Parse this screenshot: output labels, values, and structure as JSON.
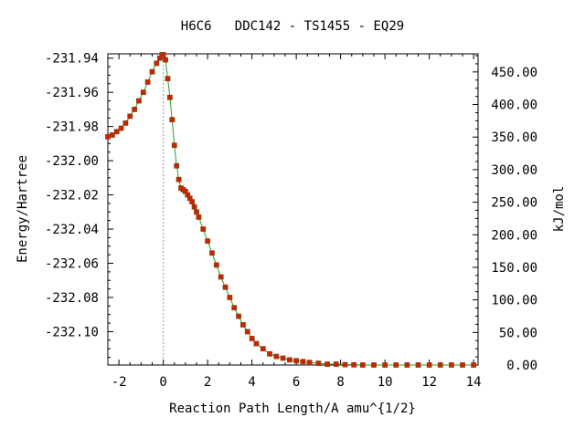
{
  "chart_data": {
    "type": "line",
    "title": "H6C6   DDC142 - TS1455 - EQ29",
    "xlabel": "Reaction Path Length/A amu^{1/2}",
    "ylabel": "Energy/Hartree",
    "y2label": "kJ/mol",
    "xlim": [
      -2.5,
      14.2
    ],
    "ylim": [
      -232.1195,
      -231.9375
    ],
    "y2lim": [
      0,
      477.8
    ],
    "x_ticks": [
      "-2",
      "0",
      "2",
      "4",
      "6",
      "8",
      "10",
      "12",
      "14"
    ],
    "y_ticks": [
      "-231.94",
      "-231.96",
      "-231.98",
      "-232.00",
      "-232.02",
      "-232.04",
      "-232.06",
      "-232.08",
      "-232.10"
    ],
    "y2_ticks": [
      "0.00",
      "50.00",
      "100.00",
      "150.00",
      "200.00",
      "250.00",
      "300.00",
      "350.00",
      "400.00",
      "450.00"
    ],
    "ts_marker_x": 0,
    "grid": false,
    "colors": {
      "line": "#2ca02c",
      "marker": "#cc2200",
      "marker_edge": "#8b4513",
      "ts_line": "#999999"
    },
    "series": [
      {
        "x": [
          -2.5,
          -2.3,
          -2.1,
          -1.9,
          -1.7,
          -1.5,
          -1.3,
          -1.1,
          -0.9,
          -0.7,
          -0.5,
          -0.3,
          -0.15,
          -0.05,
          0.0,
          0.1,
          0.2,
          0.3,
          0.4,
          0.5,
          0.6,
          0.7,
          0.8,
          0.9,
          1.0,
          1.1,
          1.2,
          1.3,
          1.4,
          1.5,
          1.6,
          1.8,
          2.0,
          2.2,
          2.4,
          2.6,
          2.8,
          3.0,
          3.2,
          3.4,
          3.6,
          3.8,
          4.0,
          4.2,
          4.5,
          4.8,
          5.1,
          5.4,
          5.7,
          6.0,
          6.3,
          6.6,
          7.0,
          7.4,
          7.8,
          8.2,
          8.6,
          9.0,
          9.5,
          10.0,
          10.5,
          11.0,
          11.5,
          12.0,
          12.5,
          13.0,
          13.5,
          14.0
        ],
        "y": [
          -231.986,
          -231.985,
          -231.983,
          -231.981,
          -231.978,
          -231.974,
          -231.97,
          -231.965,
          -231.96,
          -231.954,
          -231.948,
          -231.943,
          -231.94,
          -231.938,
          -231.938,
          -231.941,
          -231.952,
          -231.963,
          -231.976,
          -231.991,
          -232.003,
          -232.011,
          -232.016,
          -232.017,
          -232.018,
          -232.02,
          -232.022,
          -232.024,
          -232.027,
          -232.03,
          -232.033,
          -232.04,
          -232.047,
          -232.054,
          -232.061,
          -232.068,
          -232.074,
          -232.08,
          -232.086,
          -232.091,
          -232.096,
          -232.1,
          -232.104,
          -232.107,
          -232.11,
          -232.113,
          -232.1145,
          -232.1155,
          -232.1165,
          -232.117,
          -232.1175,
          -232.118,
          -232.1185,
          -232.119,
          -232.119,
          -232.1193,
          -232.1194,
          -232.1195,
          -232.1195,
          -232.1195,
          -232.1195,
          -232.1195,
          -232.1195,
          -232.1195,
          -232.1195,
          -232.1195,
          -232.1195,
          -232.1195
        ]
      }
    ]
  }
}
